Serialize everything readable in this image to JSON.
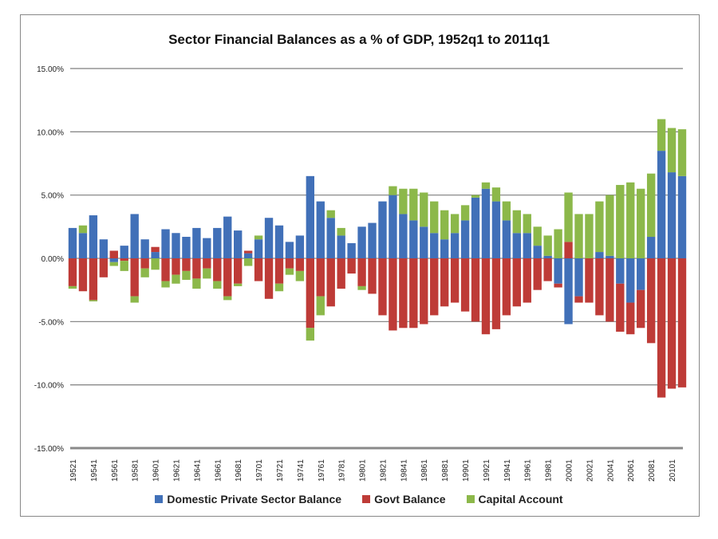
{
  "chart_data": {
    "type": "bar",
    "stacked": true,
    "title": "Sector Financial Balances as a % of GDP, 1952q1 to 2011q1",
    "xlabel": "",
    "ylabel": "",
    "ylim": [
      -15,
      15
    ],
    "yticks": [
      15,
      10,
      5,
      0,
      -5,
      -10,
      -15
    ],
    "ytick_labels": [
      "15.00%",
      "10.00%",
      "5.00%",
      "0.00%",
      "-5.00%",
      "-10.00%",
      "-15.00%"
    ],
    "xtick_labels": [
      "19521",
      "19541",
      "19561",
      "19581",
      "19601",
      "19621",
      "19641",
      "19661",
      "19681",
      "19701",
      "19721",
      "19741",
      "19761",
      "19781",
      "19801",
      "19821",
      "19841",
      "19861",
      "19881",
      "19901",
      "19921",
      "19941",
      "19961",
      "19981",
      "20001",
      "20021",
      "20041",
      "20061",
      "20081",
      "20101"
    ],
    "grid": true,
    "legend_position": "bottom",
    "x": [
      1952,
      1953,
      1954,
      1955,
      1956,
      1957,
      1958,
      1959,
      1960,
      1961,
      1962,
      1963,
      1964,
      1965,
      1966,
      1967,
      1968,
      1969,
      1970,
      1971,
      1972,
      1973,
      1974,
      1975,
      1976,
      1977,
      1978,
      1979,
      1980,
      1981,
      1982,
      1983,
      1984,
      1985,
      1986,
      1987,
      1988,
      1989,
      1990,
      1991,
      1992,
      1993,
      1994,
      1995,
      1996,
      1997,
      1998,
      1999,
      2000,
      2001,
      2002,
      2003,
      2004,
      2005,
      2006,
      2007,
      2008,
      2009,
      2010,
      2011
    ],
    "series": [
      {
        "name": "Domestic Private Sector Balance",
        "color": "#4170b8",
        "values": [
          2.4,
          2.0,
          3.4,
          1.5,
          -0.3,
          1.0,
          3.5,
          1.5,
          0.5,
          2.3,
          2.0,
          1.7,
          2.4,
          1.6,
          2.4,
          3.3,
          2.2,
          0.4,
          1.5,
          3.2,
          2.6,
          1.3,
          1.8,
          6.5,
          4.5,
          3.2,
          1.8,
          1.2,
          2.5,
          2.8,
          4.5,
          5.0,
          3.5,
          3.0,
          2.5,
          2.0,
          1.5,
          2.0,
          3.0,
          4.8,
          5.5,
          4.5,
          3.0,
          2.0,
          2.0,
          1.0,
          0.2,
          -2.0,
          -5.2,
          -3.0,
          0.0,
          0.5,
          0.2,
          -2.0,
          -3.5,
          -2.5,
          1.7,
          8.5,
          6.8,
          6.5
        ]
      },
      {
        "name": "Govt Balance",
        "color": "#be3b37",
        "values": [
          -2.2,
          -2.6,
          -3.3,
          -1.5,
          0.6,
          -0.2,
          -3.0,
          -0.8,
          0.4,
          -1.8,
          -1.3,
          -1.0,
          -1.6,
          -0.8,
          -1.8,
          -3.0,
          -2.0,
          0.2,
          -1.8,
          -3.2,
          -2.0,
          -0.8,
          -1.0,
          -5.5,
          -3.0,
          -3.8,
          -2.4,
          -1.2,
          -2.2,
          -2.8,
          -4.5,
          -5.7,
          -5.5,
          -5.5,
          -5.2,
          -4.5,
          -3.8,
          -3.5,
          -4.2,
          -5.0,
          -6.0,
          -5.6,
          -4.5,
          -3.8,
          -3.5,
          -2.5,
          -1.8,
          -0.3,
          1.3,
          -0.5,
          -3.5,
          -4.5,
          -5.0,
          -3.8,
          -2.5,
          -3.0,
          -6.7,
          -11.0,
          -10.3,
          -10.2
        ]
      },
      {
        "name": "Capital Account",
        "color": "#8cb84a",
        "values": [
          -0.2,
          0.6,
          -0.1,
          0.0,
          -0.3,
          -0.8,
          -0.5,
          -0.7,
          -0.9,
          -0.5,
          -0.7,
          -0.7,
          -0.8,
          -0.8,
          -0.6,
          -0.3,
          -0.2,
          -0.6,
          0.3,
          0.0,
          -0.6,
          -0.5,
          -0.8,
          -1.0,
          -1.5,
          0.6,
          0.6,
          0.0,
          -0.3,
          0.0,
          0.0,
          0.7,
          2.0,
          2.5,
          2.7,
          2.5,
          2.3,
          1.5,
          1.2,
          0.2,
          0.5,
          1.1,
          1.5,
          1.8,
          1.5,
          1.5,
          1.6,
          2.3,
          3.9,
          3.5,
          3.5,
          4.0,
          4.8,
          5.8,
          6.0,
          5.5,
          5.0,
          2.5,
          3.5,
          3.7
        ]
      }
    ]
  }
}
